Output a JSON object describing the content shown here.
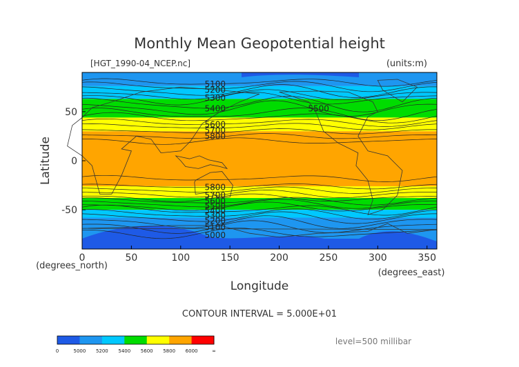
{
  "chart_data": {
    "type": "heatmap",
    "title": "Monthly Mean Geopotential height",
    "file_label": "[HGT_1990-04_NCEP.nc]",
    "units_label": "(units:m)",
    "xlabel": "Longitude",
    "ylabel": "Latitude",
    "x_unit_label": "(degrees_east)",
    "y_unit_label": "(degrees_north)",
    "xlim": [
      0,
      360
    ],
    "ylim": [
      -90,
      90
    ],
    "x_ticks": [
      0,
      50,
      100,
      150,
      200,
      250,
      300,
      350
    ],
    "y_ticks": [
      50,
      0,
      -50
    ],
    "contour_interval_text": "CONTOUR INTERVAL = 5.000E+01",
    "level_text": "level=500 millibar",
    "contour_labels": [
      {
        "text": "5100",
        "lon": 135,
        "lat": 78
      },
      {
        "text": "5200",
        "lon": 135,
        "lat": 72
      },
      {
        "text": "5300",
        "lon": 135,
        "lat": 64
      },
      {
        "text": "5400",
        "lon": 135,
        "lat": 53
      },
      {
        "text": "5500",
        "lon": 240,
        "lat": 53
      },
      {
        "text": "5600",
        "lon": 135,
        "lat": 37
      },
      {
        "text": "5700",
        "lon": 135,
        "lat": 31
      },
      {
        "text": "5800",
        "lon": 135,
        "lat": 25
      },
      {
        "text": "5800",
        "lon": 135,
        "lat": -27
      },
      {
        "text": "5700",
        "lon": 135,
        "lat": -35
      },
      {
        "text": "5600",
        "lon": 135,
        "lat": -41
      },
      {
        "text": "5500",
        "lon": 135,
        "lat": -46
      },
      {
        "text": "5400",
        "lon": 135,
        "lat": -51
      },
      {
        "text": "5300",
        "lon": 135,
        "lat": -56
      },
      {
        "text": "5200",
        "lon": 135,
        "lat": -61
      },
      {
        "text": "5100",
        "lon": 135,
        "lat": -68
      },
      {
        "text": "5000",
        "lon": 135,
        "lat": -76
      }
    ],
    "legend": {
      "tick_labels": [
        "0",
        "5000",
        "5200",
        "5400",
        "5600",
        "5800",
        "6000",
        "∞"
      ],
      "colors": [
        "#1e5ae6",
        "#1e96f0",
        "#00c8ff",
        "#00dc00",
        "#ffff00",
        "#ffa500",
        "#ff0000"
      ]
    }
  }
}
